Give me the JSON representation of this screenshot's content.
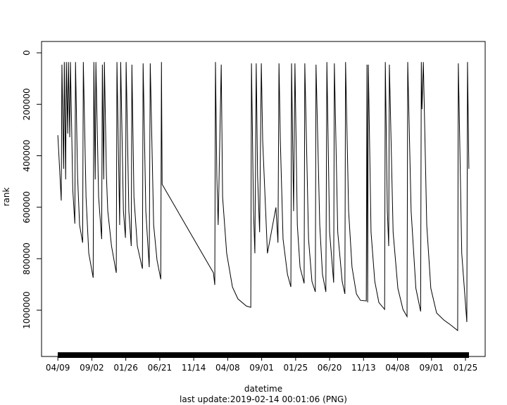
{
  "chart_data": {
    "type": "line",
    "x_label": "datetime",
    "y_label": "rank",
    "caption": "last update:2019-02-14 00:01:06 (PNG)",
    "color": "#000000",
    "y_inverted": true,
    "xlim": [
      -0.48,
      12.58
    ],
    "ylim": [
      -44000,
      1180000
    ],
    "xticks": [
      {
        "value": 0,
        "label": "04/09"
      },
      {
        "value": 1,
        "label": "09/02"
      },
      {
        "value": 2,
        "label": "01/26"
      },
      {
        "value": 3,
        "label": "06/21"
      },
      {
        "value": 4,
        "label": "11/14"
      },
      {
        "value": 5,
        "label": "04/08"
      },
      {
        "value": 6,
        "label": "09/01"
      },
      {
        "value": 7,
        "label": "01/25"
      },
      {
        "value": 8,
        "label": "06/20"
      },
      {
        "value": 9,
        "label": "11/13"
      },
      {
        "value": 10,
        "label": "04/08"
      },
      {
        "value": 11,
        "label": "09/01"
      },
      {
        "value": 12,
        "label": "01/25"
      }
    ],
    "yticks": [
      0,
      200000,
      400000,
      600000,
      800000,
      1000000
    ],
    "x": [
      0,
      0.1,
      0.12,
      0.17,
      0.19,
      0.23,
      0.25,
      0.29,
      0.31,
      0.35,
      0.37,
      0.44,
      0.5,
      0.52,
      0.58,
      0.64,
      0.73,
      0.75,
      0.83,
      0.91,
      1.04,
      1.06,
      1.1,
      1.12,
      1.2,
      1.29,
      1.31,
      1.35,
      1.37,
      1.43,
      1.47,
      1.58,
      1.72,
      1.74,
      1.82,
      1.85,
      1.93,
      1.99,
      2.01,
      2.09,
      2.16,
      2.18,
      2.24,
      2.34,
      2.49,
      2.51,
      2.59,
      2.69,
      2.72,
      2.82,
      2.92,
      3.03,
      3.05,
      3.07,
      4.58,
      4.62,
      4.64,
      4.68,
      4.72,
      4.81,
      4.85,
      4.97,
      5.14,
      5.3,
      5.55,
      5.68,
      5.7,
      5.76,
      5.8,
      5.84,
      5.88,
      5.94,
      5.99,
      6.03,
      6.17,
      6.42,
      6.48,
      6.51,
      6.55,
      6.63,
      6.76,
      6.86,
      6.88,
      6.94,
      6.98,
      7.05,
      7.13,
      7.25,
      7.27,
      7.38,
      7.48,
      7.58,
      7.6,
      7.71,
      7.79,
      7.89,
      7.92,
      8.0,
      8.12,
      8.14,
      8.24,
      8.37,
      8.45,
      8.47,
      8.56,
      8.66,
      8.79,
      8.91,
      9.08,
      9.1,
      9.12,
      9.14,
      9.22,
      9.33,
      9.45,
      9.62,
      9.64,
      9.7,
      9.74,
      9.76,
      9.87,
      10.01,
      10.16,
      10.28,
      10.3,
      10.4,
      10.54,
      10.68,
      10.7,
      10.72,
      10.76,
      10.86,
      10.98,
      11.15,
      11.36,
      11.56,
      11.77,
      11.79,
      11.89,
      12.04,
      12.06,
      12.1
    ],
    "values": [
      320000,
      574000,
      46000,
      451000,
      36000,
      492000,
      36000,
      314000,
      36000,
      328000,
      36000,
      533000,
      664000,
      36000,
      478000,
      669000,
      738000,
      36000,
      560000,
      779000,
      874000,
      36000,
      492000,
      36000,
      560000,
      724000,
      46000,
      492000,
      36000,
      478000,
      615000,
      751000,
      855000,
      36000,
      669000,
      36000,
      615000,
      719000,
      36000,
      615000,
      751000,
      46000,
      560000,
      751000,
      839000,
      41000,
      615000,
      833000,
      41000,
      669000,
      806000,
      880000,
      36000,
      511000,
      855000,
      902000,
      36000,
      478000,
      669000,
      46000,
      560000,
      779000,
      910000,
      956000,
      984000,
      989000,
      41000,
      615000,
      779000,
      41000,
      478000,
      697000,
      41000,
      342000,
      779000,
      601000,
      738000,
      41000,
      342000,
      724000,
      861000,
      910000,
      41000,
      615000,
      41000,
      669000,
      833000,
      896000,
      41000,
      724000,
      888000,
      929000,
      46000,
      669000,
      861000,
      929000,
      36000,
      697000,
      893000,
      41000,
      697000,
      888000,
      937000,
      36000,
      615000,
      833000,
      937000,
      962000,
      964000,
      46000,
      970000,
      46000,
      697000,
      888000,
      970000,
      997000,
      36000,
      615000,
      751000,
      46000,
      697000,
      915000,
      997000,
      1025000,
      36000,
      615000,
      915000,
      1005000,
      36000,
      219000,
      36000,
      669000,
      915000,
      1011000,
      1038000,
      1057000,
      1079000,
      41000,
      779000,
      1046000,
      36000,
      451000
    ]
  }
}
